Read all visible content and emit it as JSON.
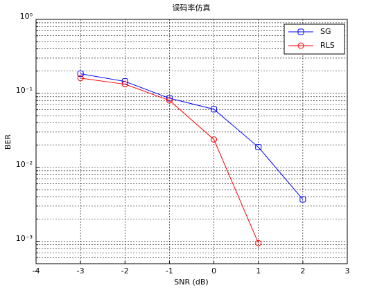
{
  "chart_data": {
    "type": "line",
    "title": "误码率仿真",
    "x_label": "SNR (dB)",
    "y_label": "BER",
    "x": [
      -3,
      -2,
      -1,
      0,
      1,
      2
    ],
    "series": [
      {
        "name": "SG",
        "color": "#0000ff",
        "marker": "square",
        "values": [
          0.184,
          0.145,
          0.086,
          0.061,
          0.0188,
          0.0037
        ]
      },
      {
        "name": "RLS",
        "color": "#ff0000",
        "marker": "circle",
        "values": [
          0.161,
          0.133,
          0.0805,
          0.0238,
          0.00095,
          null
        ]
      }
    ],
    "xlim": [
      -4,
      3
    ],
    "xticks": [
      -4,
      -3,
      -2,
      -1,
      0,
      1,
      2,
      3
    ],
    "ylim": [
      0.0005,
      1
    ],
    "yscale": "log",
    "yticks": [
      {
        "value": 0.001,
        "label": "10⁻³"
      },
      {
        "value": 0.01,
        "label": "10⁻²"
      },
      {
        "value": 0.1,
        "label": "10⁻¹"
      },
      {
        "value": 1,
        "label": "10⁰"
      }
    ],
    "yminorticks": [
      0.0006,
      0.0007,
      0.0008,
      0.0009,
      0.002,
      0.003,
      0.004,
      0.005,
      0.006,
      0.007,
      0.008,
      0.009,
      0.02,
      0.03,
      0.04,
      0.05,
      0.06,
      0.07,
      0.08,
      0.09,
      0.2,
      0.3,
      0.4,
      0.5,
      0.6,
      0.7,
      0.8,
      0.9
    ],
    "grid": true,
    "legend": "top-right"
  }
}
